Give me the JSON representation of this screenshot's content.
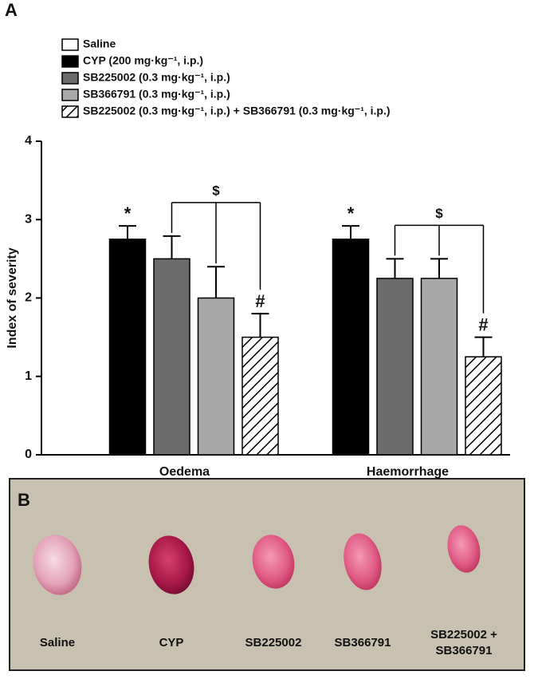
{
  "chart_data": {
    "type": "bar",
    "panel_label": "A",
    "ylabel": "Index of severity",
    "categories": [
      "Oedema",
      "Haemorrhage"
    ],
    "series": [
      {
        "name": "Saline",
        "color": "#ffffff",
        "values": [
          0,
          0
        ],
        "errors": [
          0,
          0
        ]
      },
      {
        "name": "CYP (200 mg·kg⁻¹, i.p.)",
        "color": "#000000",
        "values": [
          2.75,
          2.75
        ],
        "errors": [
          0.17,
          0.17
        ]
      },
      {
        "name": "SB225002 (0.3 mg·kg⁻¹, i.p.)",
        "color": "#6b6b6b",
        "values": [
          2.5,
          2.25
        ],
        "errors": [
          0.29,
          0.25
        ]
      },
      {
        "name": "SB366791 (0.3 mg·kg⁻¹, i.p.)",
        "color": "#a8a8a8",
        "values": [
          2.0,
          2.25
        ],
        "errors": [
          0.4,
          0.25
        ]
      },
      {
        "name": "SB225002 (0.3 mg·kg⁻¹, i.p.) + SB366791 (0.3 mg·kg⁻¹, i.p.)",
        "color": "#ffffff",
        "hatch": true,
        "values": [
          1.5,
          1.25
        ],
        "errors": [
          0.3,
          0.25
        ]
      }
    ],
    "ylim": [
      0,
      4
    ],
    "yticks": [
      0,
      1,
      2,
      3,
      4
    ],
    "grid": false,
    "legend": "top-left",
    "annotations": [
      {
        "text": "*",
        "category": 0,
        "series": [
          1
        ]
      },
      {
        "text": "#",
        "category": 0,
        "series": [
          4
        ]
      },
      {
        "text": "$",
        "category": 0,
        "series": [
          2,
          3,
          4
        ]
      },
      {
        "text": "*",
        "category": 1,
        "series": [
          1
        ]
      },
      {
        "text": "#",
        "category": 1,
        "series": [
          4
        ]
      },
      {
        "text": "$",
        "category": 1,
        "series": [
          2,
          3,
          4
        ]
      }
    ]
  },
  "photo_panel": {
    "label": "B",
    "captions": [
      [
        "Saline"
      ],
      [
        "CYP"
      ],
      [
        "SB225002"
      ],
      [
        "SB366791"
      ],
      [
        "SB225002 +",
        "SB366791"
      ]
    ]
  }
}
